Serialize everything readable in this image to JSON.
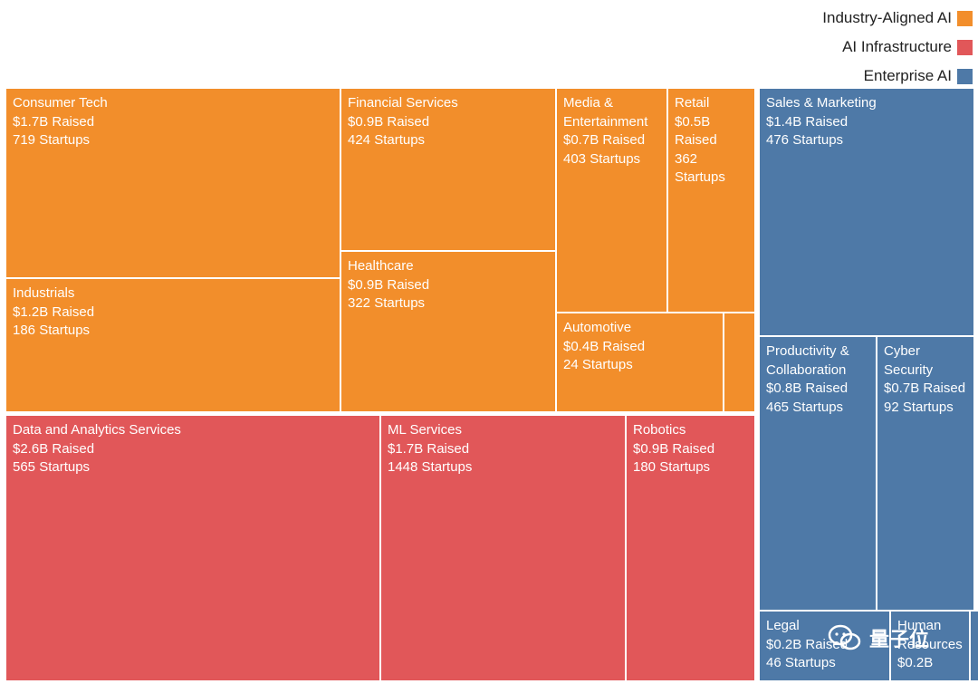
{
  "legend": [
    {
      "label": "Industry-Aligned AI",
      "color": "#F28E2B"
    },
    {
      "label": "AI Infrastructure",
      "color": "#E15759"
    },
    {
      "label": "Enterprise AI",
      "color": "#4E79A7"
    }
  ],
  "watermark": {
    "text": "量子位"
  },
  "chart_data": {
    "type": "treemap",
    "categories": [
      "Industry-Aligned AI",
      "AI Infrastructure",
      "Enterprise AI"
    ],
    "series": [
      {
        "name": "Industry-Aligned AI",
        "color": "#F28E2B",
        "items": [
          {
            "name": "Consumer Tech",
            "raised": "$1.7B Raised",
            "startups": "719 Startups"
          },
          {
            "name": "Industrials",
            "raised": "$1.2B Raised",
            "startups": "186 Startups"
          },
          {
            "name": "Financial Services",
            "raised": "$0.9B Raised",
            "startups": "424 Startups"
          },
          {
            "name": "Healthcare",
            "raised": "$0.9B Raised",
            "startups": "322 Startups"
          },
          {
            "name": "Media & Entertainment",
            "raised": "$0.7B Raised",
            "startups": "403 Startups"
          },
          {
            "name": "Retail",
            "raised": "$0.5B Raised",
            "startups": "362 Startups"
          },
          {
            "name": "Automotive",
            "raised": "$0.4B Raised",
            "startups": "24 Startups"
          }
        ]
      },
      {
        "name": "AI Infrastructure",
        "color": "#E15759",
        "items": [
          {
            "name": "Data and Analytics Services",
            "raised": "$2.6B Raised",
            "startups": "565 Startups"
          },
          {
            "name": "ML Services",
            "raised": "$1.7B Raised",
            "startups": "1448 Startups"
          },
          {
            "name": "Robotics",
            "raised": "$0.9B Raised",
            "startups": "180 Startups"
          }
        ]
      },
      {
        "name": "Enterprise AI",
        "color": "#4E79A7",
        "items": [
          {
            "name": "Sales & Marketing",
            "raised": "$1.4B Raised",
            "startups": "476 Startups"
          },
          {
            "name": "Productivity & Collaboration",
            "raised": "$0.8B Raised",
            "startups": "465 Startups"
          },
          {
            "name": "Cyber Security",
            "raised": "$0.7B Raised",
            "startups": "92 Startups"
          },
          {
            "name": "Legal",
            "raised": "$0.2B Raised",
            "startups": "46 Startups"
          },
          {
            "name": "Human Resources",
            "raised": "$0.2B",
            "startups": ""
          }
        ]
      }
    ]
  }
}
